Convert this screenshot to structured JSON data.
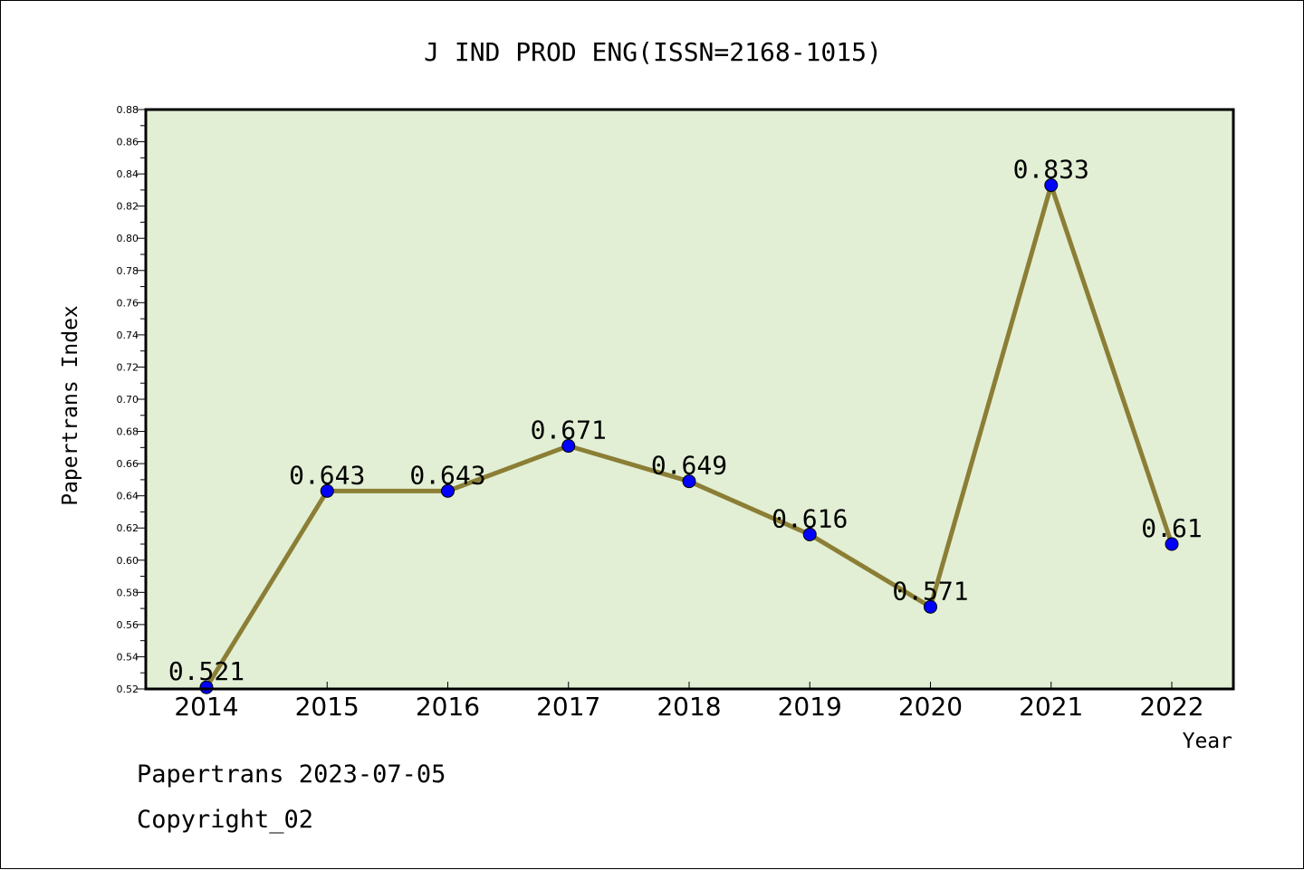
{
  "chart_data": {
    "type": "line",
    "title": "J IND PROD ENG(ISSN=2168-1015)",
    "xlabel": "Year",
    "ylabel": "Papertrans Index",
    "categories": [
      "2014",
      "2015",
      "2016",
      "2017",
      "2018",
      "2019",
      "2020",
      "2021",
      "2022"
    ],
    "values": [
      0.521,
      0.643,
      0.643,
      0.671,
      0.649,
      0.616,
      0.571,
      0.833,
      0.61
    ],
    "data_labels": [
      "0.521",
      "0.643",
      "0.643",
      "0.671",
      "0.649",
      "0.616",
      "0.571",
      "0.833",
      "0.61"
    ],
    "ylim": [
      0.52,
      0.88
    ],
    "yticks": [
      "0.52",
      "0.54",
      "0.56",
      "0.58",
      "0.60",
      "0.62",
      "0.64",
      "0.66",
      "0.68",
      "0.70",
      "0.72",
      "0.74",
      "0.76",
      "0.78",
      "0.80",
      "0.82",
      "0.84",
      "0.86",
      "0.88"
    ],
    "grid": false,
    "colors": {
      "plot_background": "#e2efd4",
      "line": "#8b7e35",
      "marker": "#0000ff"
    }
  },
  "footer": {
    "line1": "Papertrans 2023-07-05",
    "line2": "Copyright_02"
  }
}
